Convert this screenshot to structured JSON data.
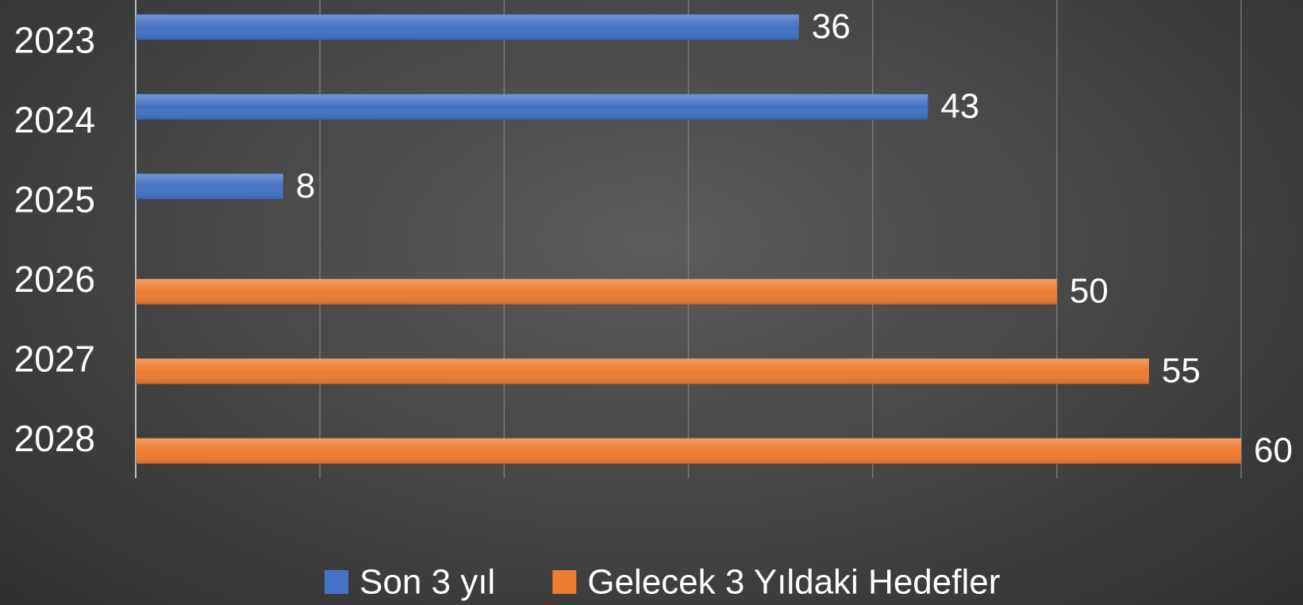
{
  "chart_data": {
    "type": "bar",
    "orientation": "horizontal",
    "categories": [
      "2023",
      "2024",
      "2025",
      "2026",
      "2027",
      "2028"
    ],
    "series": [
      {
        "name": "Son 3 yıl",
        "color": "#4472c4",
        "values": [
          36,
          43,
          8,
          null,
          null,
          null
        ]
      },
      {
        "name": "Gelecek 3 Yıldaki Hedefler",
        "color": "#ed7d31",
        "values": [
          null,
          null,
          null,
          50,
          55,
          60
        ]
      }
    ],
    "xlim": [
      0,
      60
    ],
    "xticks": [
      0,
      10,
      20,
      30,
      40,
      50,
      60
    ],
    "grid": true,
    "legend": "bottom"
  }
}
